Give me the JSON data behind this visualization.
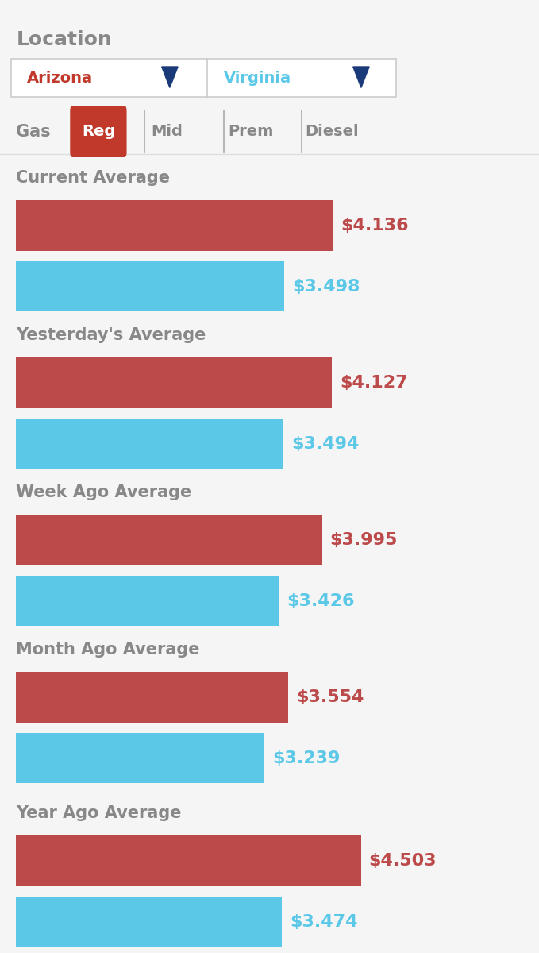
{
  "background_color": "#f5f5f5",
  "location_label": "Location",
  "state1": "Arizona",
  "state2": "Virginia",
  "state1_color": "#c0392b",
  "state2_color": "#5bc8e8",
  "gas_label": "Gas",
  "active_gas_color": "#c0392b",
  "sections": [
    {
      "title": "Current Average",
      "val1": 4.136,
      "val2": 3.498
    },
    {
      "title": "Yesterday's Average",
      "val1": 4.127,
      "val2": 3.494
    },
    {
      "title": "Week Ago Average",
      "val1": 3.995,
      "val2": 3.426
    },
    {
      "title": "Month Ago Average",
      "val1": 3.554,
      "val2": 3.239
    },
    {
      "title": "Year Ago Average",
      "val1": 4.503,
      "val2": 3.474
    }
  ],
  "bar_color1": "#bc4a4a",
  "bar_color2": "#5bc8e8",
  "label_color1": "#bc4a4a",
  "label_color2": "#5bc8e8",
  "title_color": "#888888",
  "val_max": 5.0,
  "section_title_fontsize": 15,
  "value_fontsize": 16
}
